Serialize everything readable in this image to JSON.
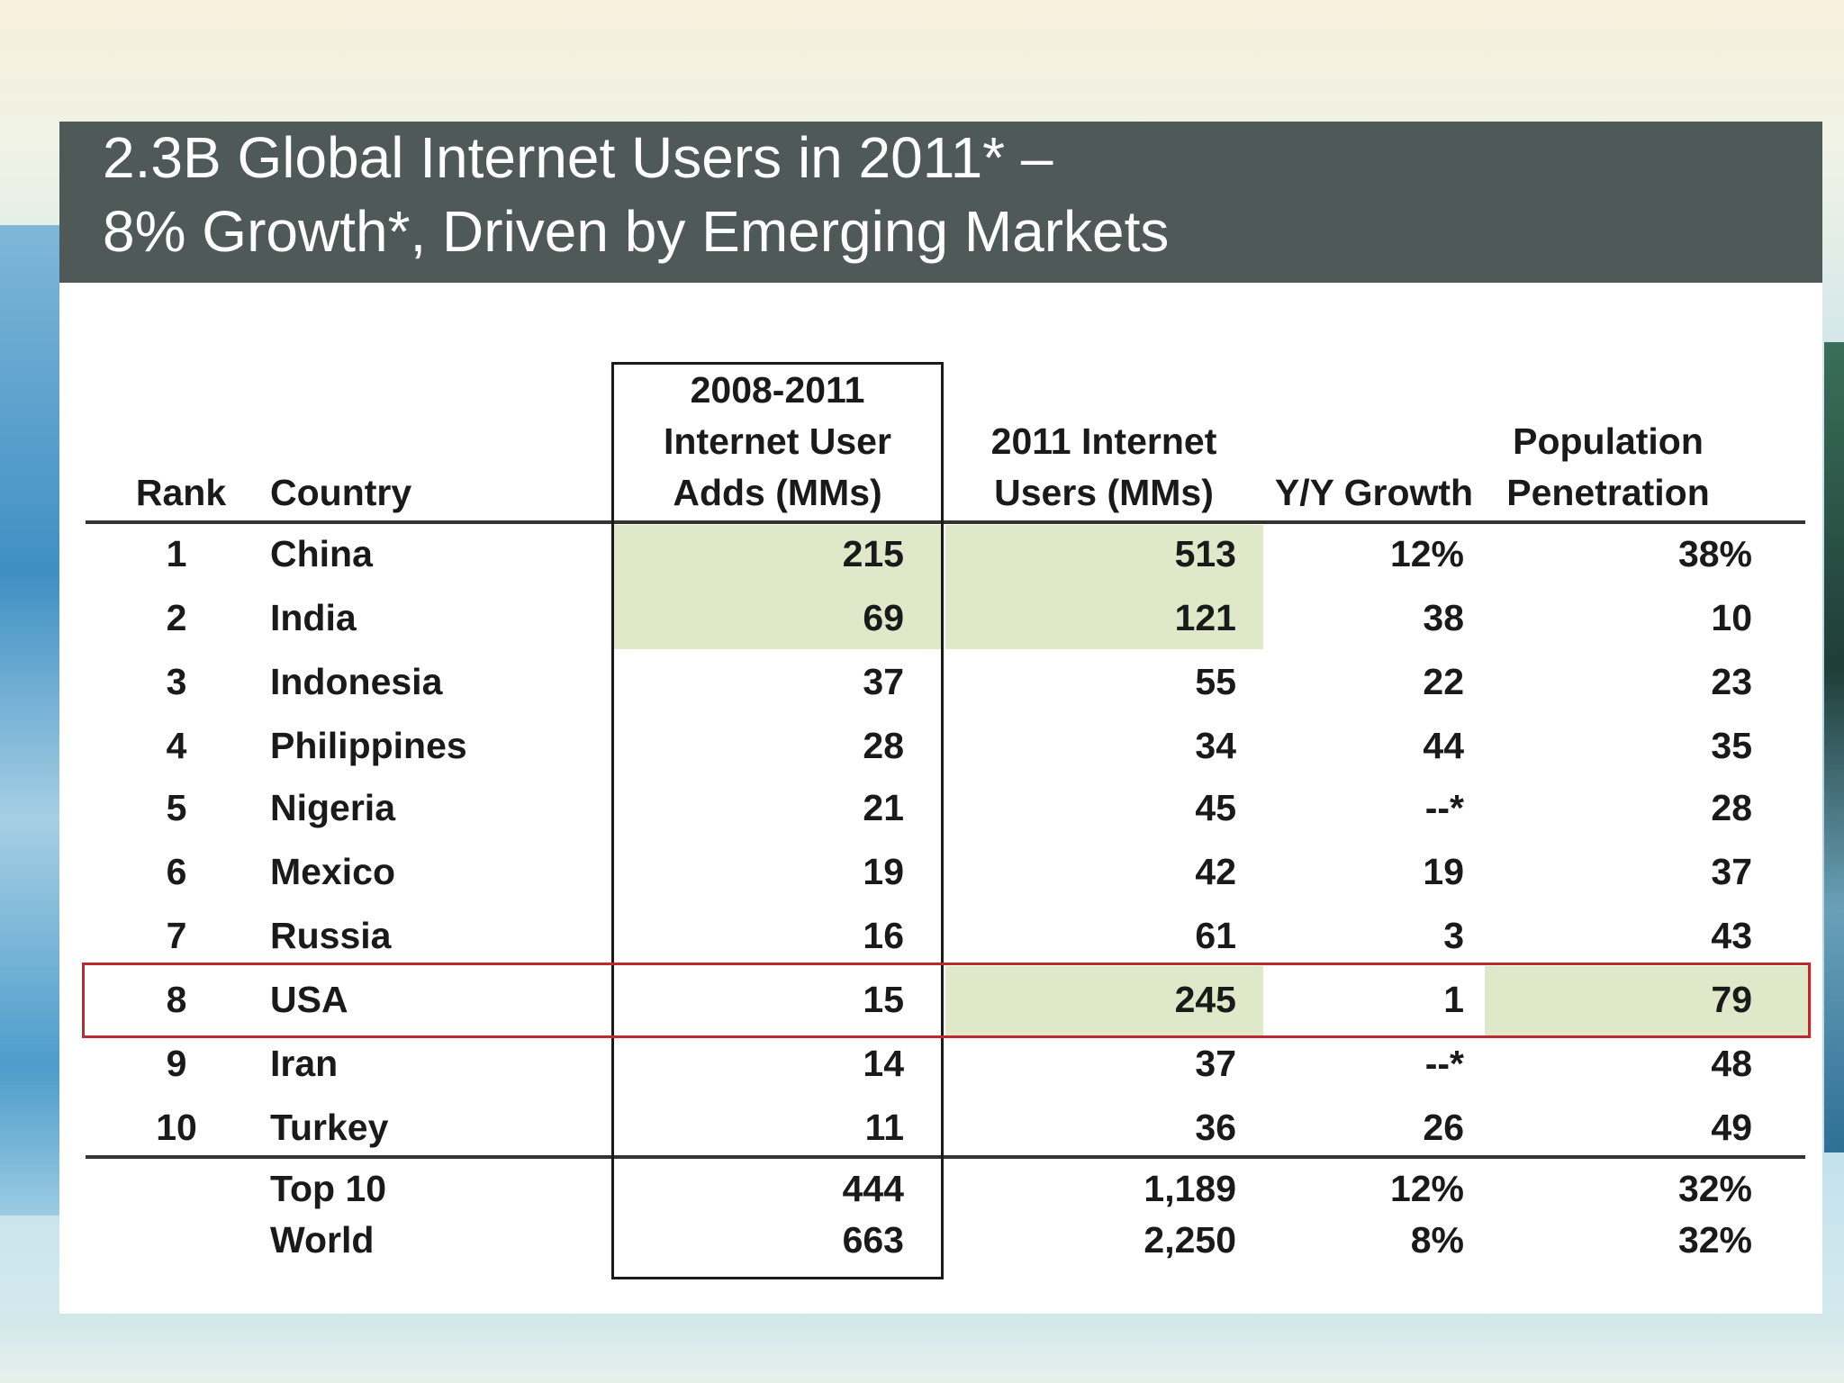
{
  "chart_data": {
    "type": "table",
    "title_line1": "2.3B Global Internet Users in 2011* –",
    "title_line2": "8% Growth*, Driven by Emerging Markets",
    "headers": {
      "rank": "Rank",
      "country": "Country",
      "adds": [
        "2008-2011",
        "Internet User",
        "Adds (MMs)"
      ],
      "users": [
        "2011 Internet",
        "Users (MMs)"
      ],
      "growth": "Y/Y Growth",
      "penetration": [
        "Population",
        "Penetration"
      ]
    },
    "rows": [
      {
        "rank": "1",
        "country": "China",
        "adds": "215",
        "users": "513",
        "growth": "12%",
        "penetration": "38%"
      },
      {
        "rank": "2",
        "country": "India",
        "adds": "69",
        "users": "121",
        "growth": "38",
        "penetration": "10"
      },
      {
        "rank": "3",
        "country": "Indonesia",
        "adds": "37",
        "users": "55",
        "growth": "22",
        "penetration": "23"
      },
      {
        "rank": "4",
        "country": "Philippines",
        "adds": "28",
        "users": "34",
        "growth": "44",
        "penetration": "35"
      },
      {
        "rank": "5",
        "country": "Nigeria",
        "adds": "21",
        "users": "45",
        "growth": "--*",
        "penetration": "28"
      },
      {
        "rank": "6",
        "country": "Mexico",
        "adds": "19",
        "users": "42",
        "growth": "19",
        "penetration": "37"
      },
      {
        "rank": "7",
        "country": "Russia",
        "adds": "16",
        "users": "61",
        "growth": "3",
        "penetration": "43"
      },
      {
        "rank": "8",
        "country": "USA",
        "adds": "15",
        "users": "245",
        "growth": "1",
        "penetration": "79"
      },
      {
        "rank": "9",
        "country": "Iran",
        "adds": "14",
        "users": "37",
        "growth": "--*",
        "penetration": "48"
      },
      {
        "rank": "10",
        "country": "Turkey",
        "adds": "11",
        "users": "36",
        "growth": "26",
        "penetration": "49"
      }
    ],
    "totals": [
      {
        "label": "Top 10",
        "adds": "444",
        "users": "1,189",
        "growth": "12%",
        "penetration": "32%"
      },
      {
        "label": "World",
        "adds": "663",
        "users": "2,250",
        "growth": "8%",
        "penetration": "32%"
      }
    ],
    "highlighted_row": "USA"
  },
  "colors": {
    "title_bar": "#4f5a58",
    "highlight_fill": "#dfe8c8",
    "usa_outline": "#c0282f"
  }
}
